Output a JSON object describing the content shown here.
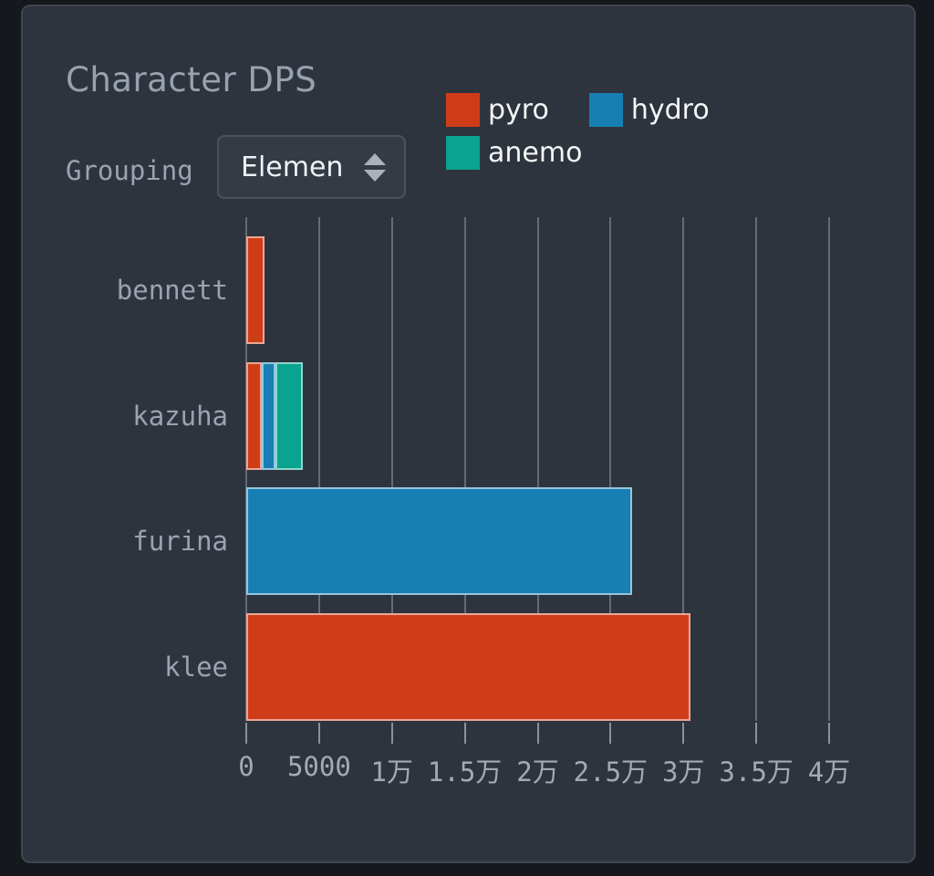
{
  "panel": {
    "title": "Character DPS"
  },
  "grouping": {
    "label": "Grouping",
    "value": "Elemen"
  },
  "legend": {
    "items": [
      {
        "name": "pyro",
        "color": "#cf3d18"
      },
      {
        "name": "hydro",
        "color": "#177fb3"
      },
      {
        "name": "anemo",
        "color": "#09a38f"
      }
    ]
  },
  "chart_data": {
    "type": "bar",
    "orientation": "horizontal",
    "stacked": true,
    "title": "Character DPS",
    "categories": [
      "bennett",
      "kazuha",
      "furina",
      "klee"
    ],
    "series": [
      {
        "name": "pyro",
        "color": "#cf3d18",
        "values": [
          1250,
          1050,
          0,
          30500
        ]
      },
      {
        "name": "hydro",
        "color": "#177fb3",
        "values": [
          0,
          950,
          26500,
          0
        ]
      },
      {
        "name": "anemo",
        "color": "#09a38f",
        "values": [
          0,
          1900,
          0,
          0
        ]
      }
    ],
    "xlim": [
      0,
      40000
    ],
    "x_ticks": [
      {
        "value": 0,
        "label": "0"
      },
      {
        "value": 5000,
        "label": "5000"
      },
      {
        "value": 10000,
        "label": "1万"
      },
      {
        "value": 15000,
        "label": "1.5万"
      },
      {
        "value": 20000,
        "label": "2万"
      },
      {
        "value": 25000,
        "label": "2.5万"
      },
      {
        "value": 30000,
        "label": "3万"
      },
      {
        "value": 35000,
        "label": "3.5万"
      },
      {
        "value": 40000,
        "label": "4万"
      }
    ],
    "grid": "vertical-only",
    "legend_position": "top-right",
    "ylabel": "",
    "xlabel": ""
  },
  "theme": {
    "outer_bg": "#15181c",
    "panel_bg": "#2e343d",
    "panel_border": "#3f4650",
    "title_color": "#98a2ae",
    "label_color": "#9aa3b0",
    "grid_color": "#646b75",
    "legend_text": "#f3f5f6",
    "select_bg": "#343b45",
    "select_border": "#4a525c",
    "select_text": "#eff2f4"
  }
}
